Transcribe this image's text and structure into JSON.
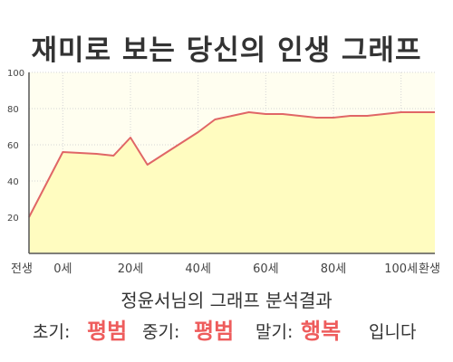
{
  "chart_data": {
    "type": "area",
    "title": "재미로 보는 당신의 인생 그래프",
    "xlabel": "",
    "ylabel": "",
    "x_ticks": [
      "전생",
      "0세",
      "20세",
      "40세",
      "60세",
      "80세",
      "100세",
      "환생"
    ],
    "y_ticks": [
      "100",
      "80",
      "60",
      "40",
      "20"
    ],
    "ylim": [
      0,
      100
    ],
    "grid": true,
    "series": [
      {
        "x": [
          -10,
          0,
          10,
          15,
          20,
          25,
          30,
          35,
          40,
          45,
          50,
          55,
          60,
          65,
          70,
          75,
          80,
          85,
          90,
          95,
          100,
          105,
          110
        ],
        "values": [
          20,
          56,
          55,
          54,
          64,
          49,
          55,
          61,
          67,
          74,
          76,
          78,
          77,
          77,
          76,
          75,
          75,
          76,
          76,
          77,
          78,
          78,
          78
        ]
      }
    ],
    "fill_color": "#fffcc0",
    "line_color": "#e06666"
  },
  "result": {
    "title": "정윤서님의 그래프 분석결과",
    "early_label": "초기:",
    "early_value": "평범",
    "middle_label": "중기:",
    "middle_value": "평범",
    "late_label": "말기:",
    "late_value": "행복",
    "ending": "입니다",
    "highlight_color": "#ee5c5c"
  }
}
